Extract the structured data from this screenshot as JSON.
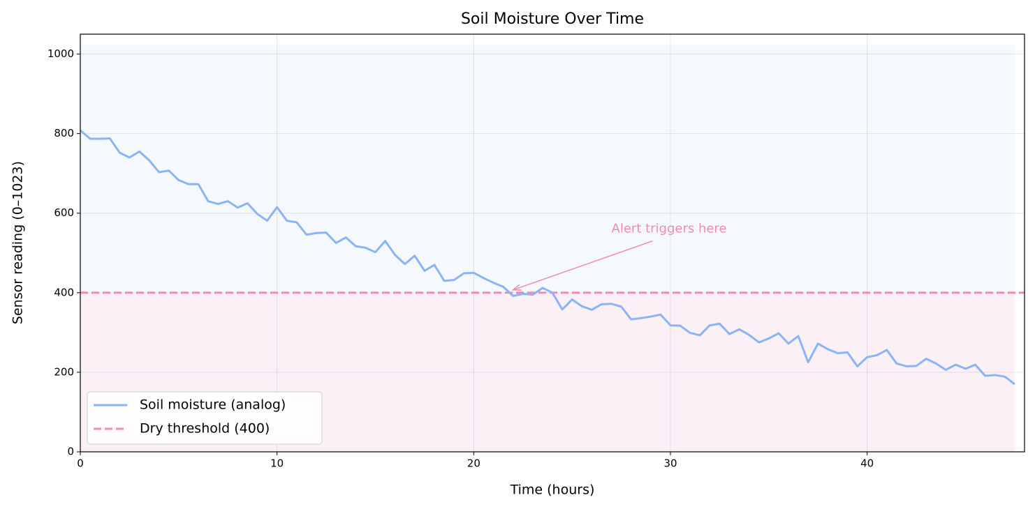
{
  "chart_data": {
    "type": "line",
    "title": "Soil Moisture Over Time",
    "x_label": "Time (hours)",
    "y_label": "Sensor reading (0–1023)",
    "x": [
      0,
      0.5,
      1,
      1.5,
      2,
      2.5,
      3,
      3.5,
      4,
      4.5,
      5,
      5.5,
      6,
      6.5,
      7,
      7.5,
      8,
      8.5,
      9,
      9.5,
      10,
      10.5,
      11,
      11.5,
      12,
      12.5,
      13,
      13.5,
      14,
      14.5,
      15,
      15.5,
      16,
      16.5,
      17,
      17.5,
      18,
      18.5,
      19,
      19.5,
      20,
      20.5,
      21,
      21.5,
      22,
      22.5,
      23,
      23.5,
      24,
      24.5,
      25,
      25.5,
      26,
      26.5,
      27,
      27.5,
      28,
      28.5,
      29,
      29.5,
      30,
      30.5,
      31,
      31.5,
      32,
      32.5,
      33,
      33.5,
      34,
      34.5,
      35,
      35.5,
      36,
      36.5,
      37,
      37.5,
      38,
      38.5,
      39,
      39.5,
      40,
      40.5,
      41,
      41.5,
      42,
      42.5,
      43,
      43.5,
      44,
      44.5,
      45,
      45.5,
      46,
      46.5,
      47,
      47.5
    ],
    "series": [
      {
        "name": "Soil moisture (analog)",
        "color": "#8ab4f8",
        "values": [
          808,
          787,
          787,
          788,
          752,
          740,
          755,
          733,
          703,
          707,
          683,
          673,
          673,
          630,
          623,
          630,
          614,
          625,
          598,
          581,
          615,
          581,
          577,
          546,
          550,
          551,
          525,
          539,
          517,
          513,
          502,
          530,
          495,
          472,
          493,
          455,
          470,
          430,
          432,
          449,
          450,
          437,
          425,
          415,
          392,
          397,
          395,
          412,
          400,
          358,
          383,
          366,
          357,
          371,
          372,
          365,
          333,
          336,
          340,
          345,
          318,
          317,
          299,
          293,
          318,
          322,
          296,
          308,
          294,
          275,
          285,
          298,
          272,
          291,
          225,
          272,
          258,
          248,
          250,
          215,
          238,
          243,
          256,
          222,
          215,
          216,
          234,
          222,
          206,
          219,
          209,
          219,
          191,
          193,
          189,
          170
        ]
      }
    ],
    "threshold": {
      "name": "Dry threshold (400)",
      "value": 400,
      "color": "#f08caf",
      "style": "dashed"
    },
    "zones": [
      {
        "from": 0,
        "to": 400,
        "color": "#fbf0f5"
      },
      {
        "from": 400,
        "to": 1023,
        "color": "#f5f9fd"
      }
    ],
    "annotation": {
      "text": "Alert triggers here",
      "xy": [
        22,
        400
      ],
      "xytext": [
        27,
        560
      ],
      "color": "#f08caf"
    },
    "xlim": [
      0,
      48
    ],
    "ylim": [
      0,
      1050
    ],
    "xticks": [
      0,
      10,
      20,
      30,
      40
    ],
    "yticks": [
      0,
      200,
      400,
      600,
      800,
      1000
    ],
    "grid": true,
    "legend": "lower left"
  }
}
